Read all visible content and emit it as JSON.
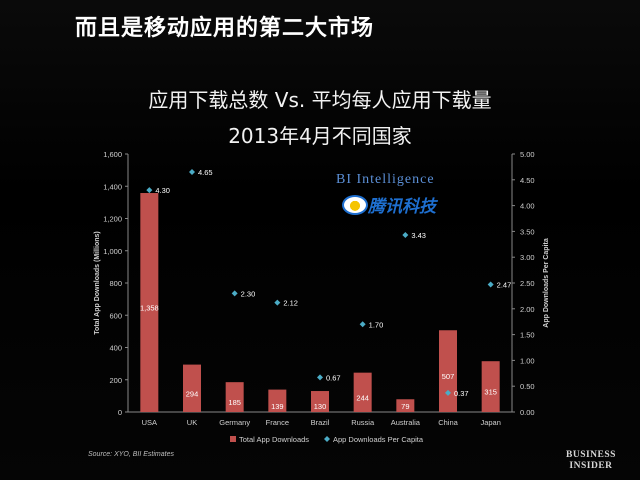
{
  "heading": "而且是移动应用的第二大市场",
  "chart_data": {
    "type": "bar",
    "title": "应用下载总数 Vs. 平均每人应用下载量",
    "subtitle": "2013年4月不同国家",
    "categories": [
      "USA",
      "UK",
      "Germany",
      "France",
      "Brazil",
      "Russia",
      "Australia",
      "China",
      "Japan"
    ],
    "series": [
      {
        "name": "Total App Downloads",
        "type": "bar",
        "axis": "left",
        "color": "#c0504d",
        "values": [
          1358,
          294,
          185,
          139,
          130,
          244,
          79,
          507,
          315
        ],
        "labels": [
          "1,358",
          "294",
          "185",
          "139",
          "130",
          "244",
          "79",
          "507",
          "315"
        ]
      },
      {
        "name": "App Downloads Per Capita",
        "type": "scatter",
        "axis": "right",
        "color": "#4bacc6",
        "values": [
          4.3,
          4.65,
          2.3,
          2.12,
          0.67,
          1.7,
          3.43,
          0.37,
          2.47
        ],
        "labels": [
          "4.30",
          "4.65",
          "2.30",
          "2.12",
          "0.67",
          "1.70",
          "3.43",
          "0.37",
          "2.47"
        ]
      }
    ],
    "ylabel": "Total App Downloads (Millions)",
    "y2label": "App Downloads Per Capita",
    "ylim": [
      0,
      1600
    ],
    "y2lim": [
      0,
      5
    ],
    "yticks": [
      "0",
      "200",
      "400",
      "600",
      "800",
      "1,000",
      "1,200",
      "1,400",
      "1,600"
    ],
    "y2ticks": [
      "0.00",
      "0.50",
      "1.00",
      "1.50",
      "2.00",
      "2.50",
      "3.00",
      "3.50",
      "4.00",
      "4.50",
      "5.00"
    ],
    "grid": false,
    "legend_position": "bottom"
  },
  "watermark": {
    "bi": "BI Intelligence",
    "tencent": "腾讯科技"
  },
  "source": "Source: XYO, BII Estimates",
  "brand": [
    "BUSINESS",
    "INSIDER"
  ]
}
